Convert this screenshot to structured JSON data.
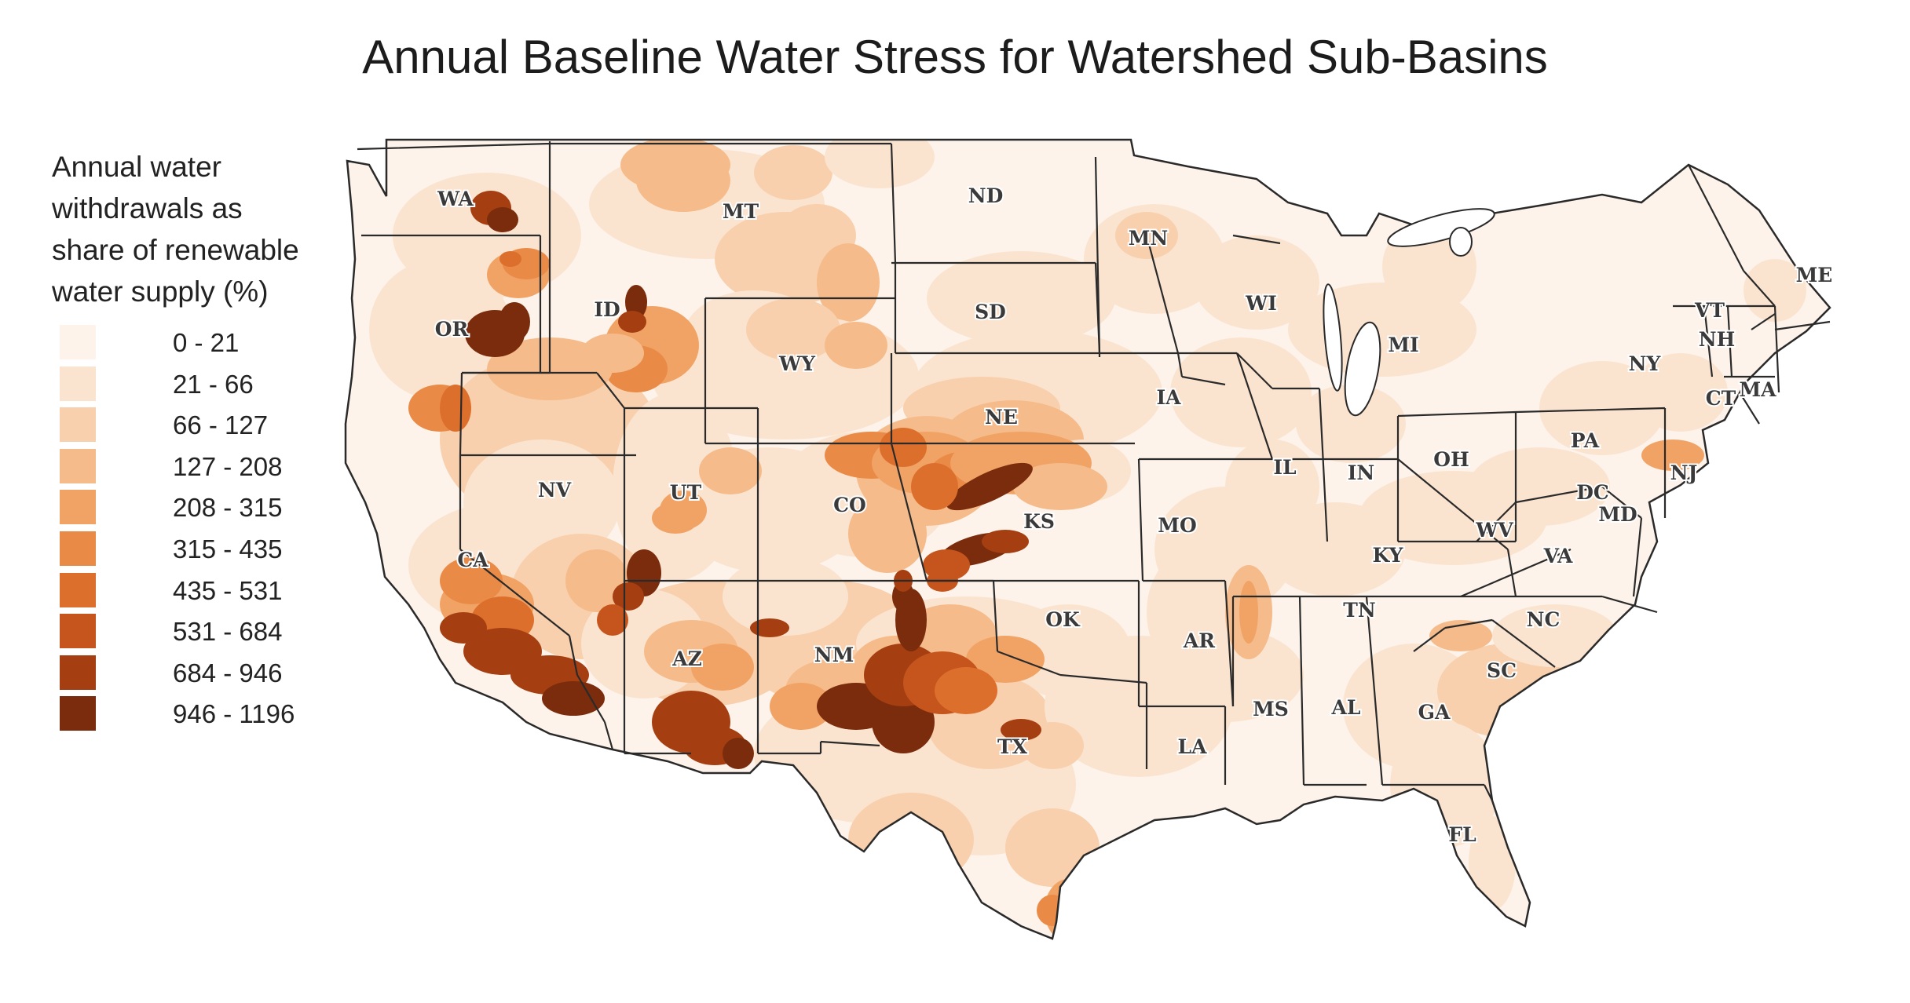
{
  "title": "Annual Baseline Water Stress for Watershed Sub-Basins",
  "legend": {
    "title_lines": [
      "Annual water",
      "withdrawals as",
      "share of renewable",
      "water supply (%)"
    ],
    "classes": [
      {
        "label": "0 - 21",
        "color": "#fdf3ea"
      },
      {
        "label": "21 - 66",
        "color": "#fbe4cf"
      },
      {
        "label": "66 - 127",
        "color": "#f8d0ad"
      },
      {
        "label": "127 - 208",
        "color": "#f5bb8b"
      },
      {
        "label": "208 - 315",
        "color": "#f1a366"
      },
      {
        "label": "315 - 435",
        "color": "#e98a46"
      },
      {
        "label": "435 - 531",
        "color": "#dd6f2d"
      },
      {
        "label": "531 - 684",
        "color": "#c5551c"
      },
      {
        "label": "684 - 946",
        "color": "#a53f12"
      },
      {
        "label": "946 - 1196",
        "color": "#7a2c0c"
      }
    ]
  },
  "states": [
    "WA",
    "OR",
    "CA",
    "ID",
    "NV",
    "MT",
    "WY",
    "UT",
    "AZ",
    "CO",
    "NM",
    "ND",
    "SD",
    "NE",
    "KS",
    "OK",
    "TX",
    "MN",
    "IA",
    "MO",
    "AR",
    "LA",
    "WI",
    "IL",
    "MI",
    "IN",
    "KY",
    "TN",
    "MS",
    "AL",
    "OH",
    "WV",
    "VA",
    "NC",
    "SC",
    "GA",
    "FL",
    "PA",
    "NY",
    "VT",
    "NH",
    "ME",
    "MA",
    "CT",
    "NJ",
    "DC",
    "MD"
  ],
  "colors": {
    "border": "#2a2a2a",
    "label": "#3a3a3a"
  }
}
